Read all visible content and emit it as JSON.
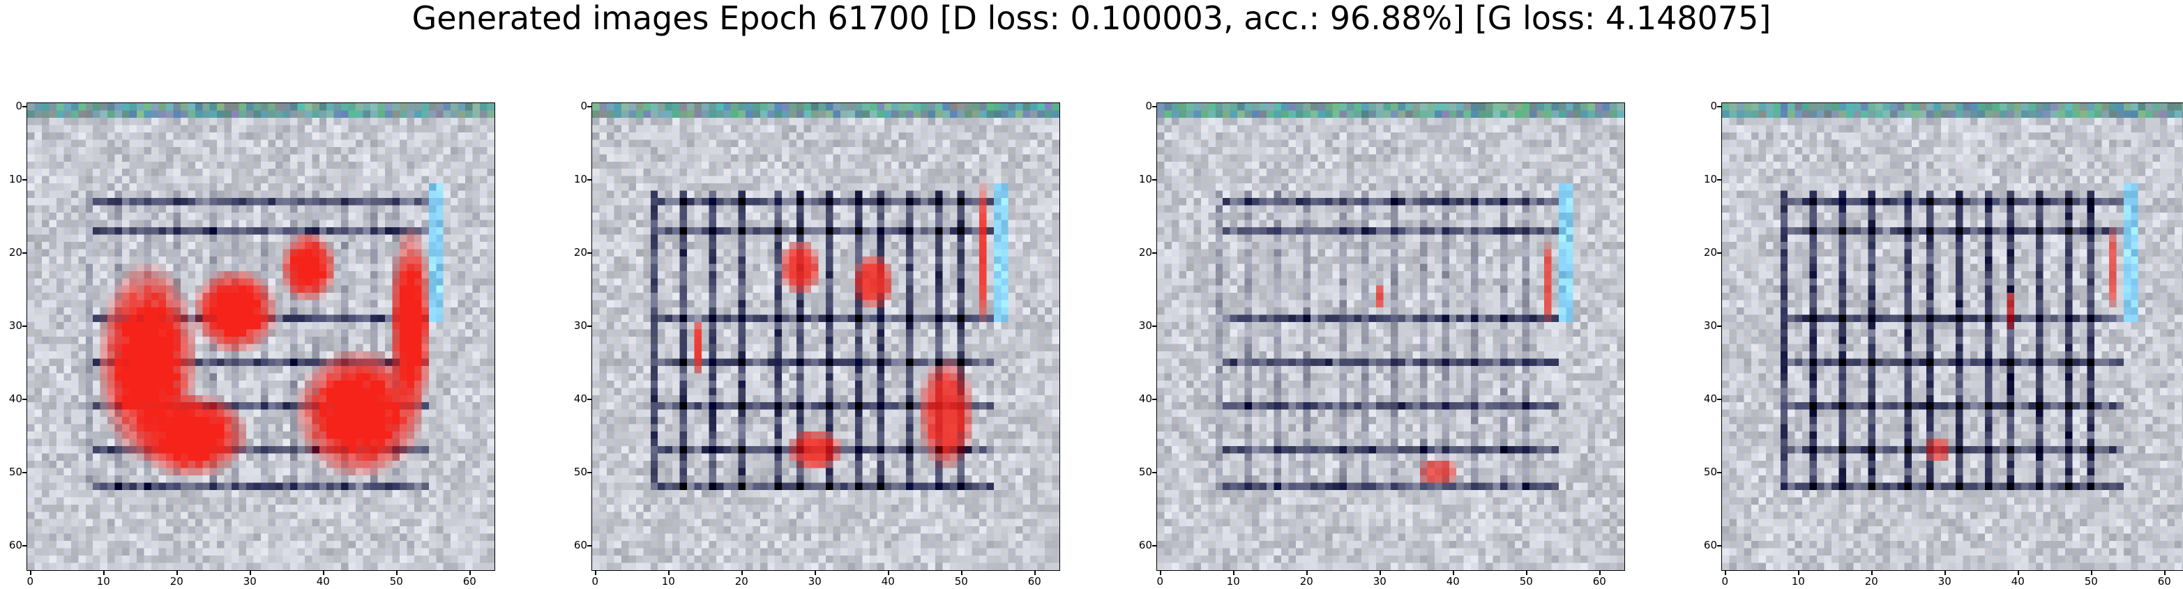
{
  "figure": {
    "suptitle": "Generated images Epoch 61700 [D loss: 0.100003, acc.: 96.88%] [G loss: 4.148075]"
  },
  "chart_data": [
    {
      "type": "heatmap",
      "title": "",
      "grid_size": [
        64,
        64
      ],
      "xlim": [
        -0.5,
        63.5
      ],
      "ylim": [
        63.5,
        -0.5
      ],
      "x_ticks": [
        "0",
        "10",
        "20",
        "30",
        "40",
        "50",
        "60"
      ],
      "y_ticks": [
        "0",
        "10",
        "20",
        "30",
        "40",
        "50",
        "60"
      ],
      "grid": false,
      "content": "generated RGB image, gray-white texture with dark grid lines, large red blob region",
      "red_intensity": 1.0,
      "vertical_line_strength": 0.25
    },
    {
      "type": "heatmap",
      "title": "",
      "grid_size": [
        64,
        64
      ],
      "xlim": [
        -0.5,
        63.5
      ],
      "ylim": [
        63.5,
        -0.5
      ],
      "x_ticks": [
        "0",
        "10",
        "20",
        "30",
        "40",
        "50",
        "60"
      ],
      "y_ticks": [
        "0",
        "10",
        "20",
        "30",
        "40",
        "50",
        "60"
      ],
      "grid": false,
      "content": "generated RGB image, dark vertical/horizontal grid lines with scattered red patches",
      "red_intensity": 0.6,
      "vertical_line_strength": 0.9
    },
    {
      "type": "heatmap",
      "title": "",
      "grid_size": [
        64,
        64
      ],
      "xlim": [
        -0.5,
        63.5
      ],
      "ylim": [
        63.5,
        -0.5
      ],
      "x_ticks": [
        "0",
        "10",
        "20",
        "30",
        "40",
        "50",
        "60"
      ],
      "y_ticks": [
        "0",
        "10",
        "20",
        "30",
        "40",
        "50",
        "60"
      ],
      "grid": false,
      "content": "generated RGB image, mostly gray-white with horizontal dark lines and a small red spot",
      "red_intensity": 0.25,
      "vertical_line_strength": 0.3
    },
    {
      "type": "heatmap",
      "title": "",
      "grid_size": [
        64,
        64
      ],
      "xlim": [
        -0.5,
        63.5
      ],
      "ylim": [
        63.5,
        -0.5
      ],
      "x_ticks": [
        "0",
        "10",
        "20",
        "30",
        "40",
        "50",
        "60"
      ],
      "y_ticks": [
        "0",
        "10",
        "20",
        "30",
        "40",
        "50",
        "60"
      ],
      "grid": false,
      "content": "generated RGB image, strong dark vertical lines, faint red marks",
      "red_intensity": 0.15,
      "vertical_line_strength": 1.0
    }
  ]
}
